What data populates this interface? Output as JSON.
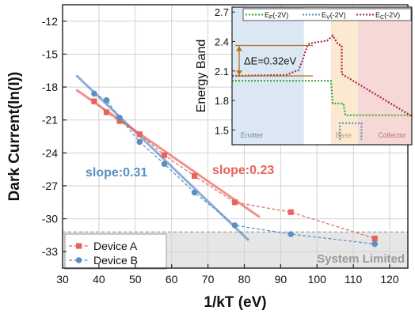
{
  "chart_data": [
    {
      "type": "scatter",
      "xlabel": "1/kT (eV)",
      "ylabel": "Dark Current(ln(I))",
      "xlim": [
        30,
        125
      ],
      "ylim": [
        -34.5,
        -10.5
      ],
      "xticks": [
        30,
        40,
        50,
        60,
        70,
        80,
        90,
        100,
        110,
        120
      ],
      "yticks": [
        -12,
        -15,
        -18,
        -21,
        -24,
        -27,
        -30,
        -33
      ],
      "grid": true,
      "legend_position": "bottom-left",
      "region_label": "System Limited",
      "region_y_max": -31.2,
      "series": [
        {
          "name": "Device A",
          "color": "#e8645a",
          "marker": "square",
          "line": "dashed",
          "x": [
            38.7,
            42.1,
            45.7,
            51.2,
            58.0,
            66.3,
            77.4,
            92.8,
            115.9
          ],
          "y": [
            -19.3,
            -20.3,
            -21.1,
            -22.3,
            -24.2,
            -26.1,
            -28.5,
            -29.4,
            -31.8
          ]
        },
        {
          "name": "Device B",
          "color": "#5b8fc4",
          "marker": "circle",
          "line": "dashed",
          "x": [
            38.7,
            42.1,
            45.7,
            51.2,
            58.0,
            66.3,
            77.4,
            92.8,
            115.9
          ],
          "y": [
            -18.6,
            -19.2,
            -20.8,
            -23.0,
            -25.0,
            -27.6,
            -30.6,
            -31.4,
            -32.3
          ]
        }
      ],
      "fits": [
        {
          "label": "slope:0.31",
          "color": "#5b8fc4",
          "x": [
            34,
            81
          ],
          "y": [
            -17.0,
            -31.9
          ]
        },
        {
          "label": "slope:0.23",
          "color": "#e8645a",
          "x": [
            34,
            84
          ],
          "y": [
            -18.3,
            -29.8
          ]
        }
      ]
    },
    {
      "type": "line",
      "ylabel": "Energy Band",
      "ylim": [
        1.35,
        2.75
      ],
      "yticks": [
        "1.5",
        "1.8",
        "2.1",
        "2.4",
        "2.7"
      ],
      "xticks_shown": false,
      "regions": [
        {
          "label": "Emitter",
          "color": "#dbe8f4"
        },
        {
          "label": "Base",
          "color": "#fbe9d2"
        },
        {
          "label": "Collector",
          "color": "#f6d8d6"
        }
      ],
      "annotation": "ΔE=0.32eV",
      "series": [
        {
          "name": "E_F(-2V)",
          "sym": "E",
          "sub": "F",
          "suffix": "(-2V)",
          "color": "#3aa83a",
          "x": [
            0,
            0.55,
            0.56,
            0.62,
            0.63,
            1.0
          ],
          "y": [
            2.0,
            2.0,
            1.77,
            1.77,
            1.65,
            1.65
          ]
        },
        {
          "name": "E_V(-2V)",
          "sym": "E",
          "sub": "V",
          "suffix": "(-2V)",
          "color": "#5b8fc4",
          "x": [
            0.6,
            0.6,
            0.72,
            0.72
          ],
          "y": [
            1.4,
            1.57,
            1.57,
            1.4
          ]
        },
        {
          "name": "E_C(-2V)",
          "sym": "E",
          "sub": "C",
          "suffix": "(-2V)",
          "color": "#a8293a",
          "x": [
            0,
            0.3,
            0.37,
            0.39,
            0.42,
            0.43,
            0.53,
            0.56,
            0.59,
            0.61,
            0.61,
            1.0
          ],
          "y": [
            2.05,
            2.06,
            2.11,
            2.2,
            2.36,
            2.38,
            2.41,
            2.46,
            2.37,
            2.36,
            2.07,
            1.64
          ]
        }
      ]
    }
  ]
}
